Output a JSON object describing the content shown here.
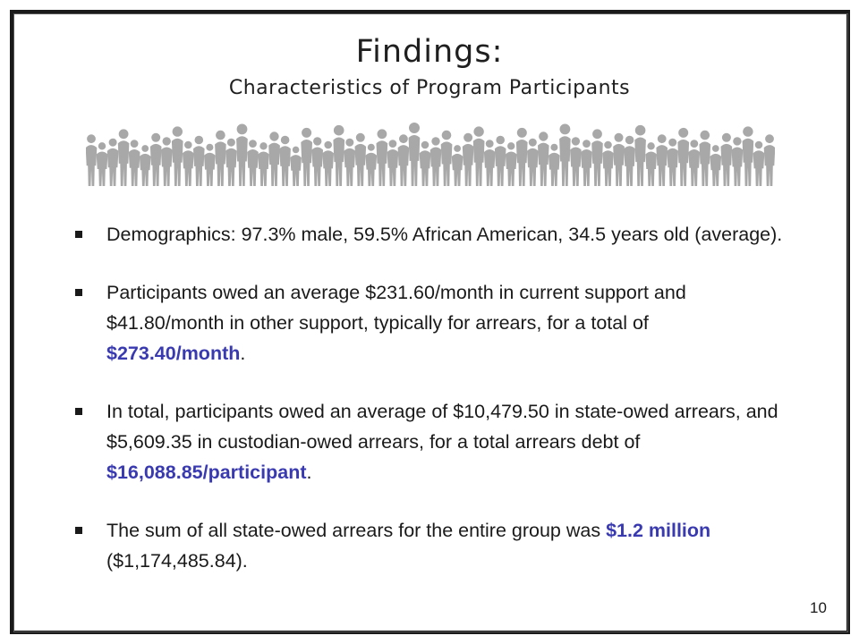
{
  "title": "Findings:",
  "subtitle": "Characteristics of Program Participants",
  "crowd_icon": "people-silhouette-icon",
  "colors": {
    "highlight": "#3a3ab0",
    "silhouette": "#a8a8a8",
    "border": "#1a1a1a"
  },
  "bullets": [
    {
      "text": "Demographics:  97.3% male, 59.5% African American, 34.5 years old (average)."
    },
    {
      "text_before": "Participants owed an average $231.60/month in current support and $41.80/month in other support, typically for arrears, for a total of ",
      "highlight": "$273.40/month",
      "text_after": "."
    },
    {
      "text_before": "In total, participants owed an average of $10,479.50 in state-owed arrears, and $5,609.35 in custodian-owed arrears, for a total arrears debt of ",
      "highlight": "$16,088.85/participant",
      "text_after": "."
    },
    {
      "text_before": "The sum of all state-owed arrears for the entire group was ",
      "highlight": "$1.2 million",
      "text_after": " ($1,174,485.84)."
    }
  ],
  "page_number": "10"
}
